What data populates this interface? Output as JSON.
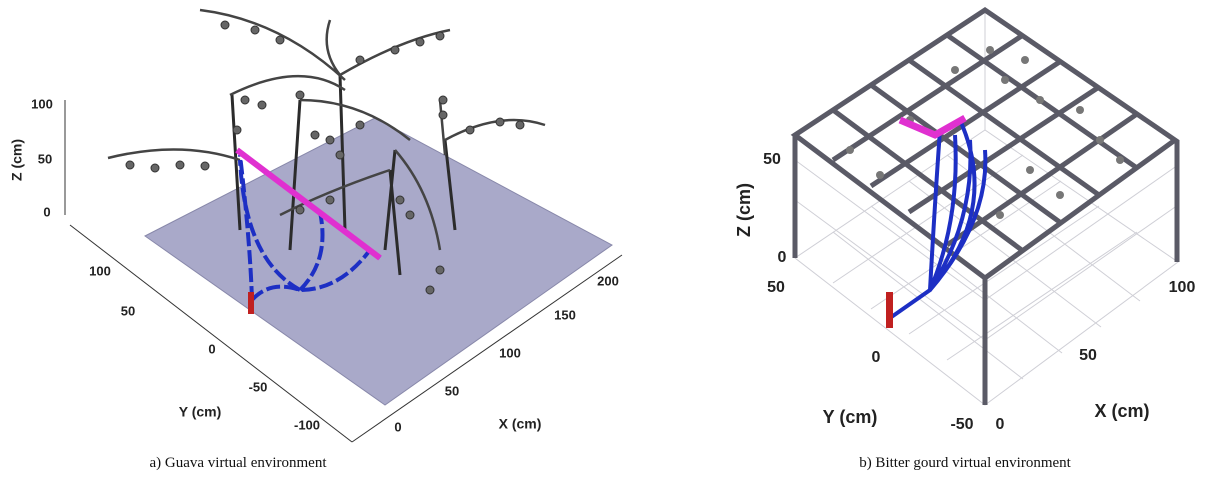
{
  "figures": [
    {
      "z_label": "Z (cm)",
      "y_label": "Y (cm)",
      "x_label": "X (cm)",
      "z_ticks": [
        100,
        50,
        0
      ],
      "y_ticks": [
        100,
        50,
        0,
        -50,
        -100
      ],
      "x_ticks": [
        0,
        50,
        100,
        150,
        200
      ],
      "caption": "a) Guava virtual environment"
    },
    {
      "z_label": "Z (cm)",
      "y_label": "Y (cm)",
      "x_label": "X (cm)",
      "z_ticks": [
        50,
        0
      ],
      "y_ticks": [
        50,
        0,
        -50
      ],
      "x_ticks": [
        0,
        50,
        100
      ],
      "caption": "b) Bitter gourd virtual environment"
    }
  ]
}
